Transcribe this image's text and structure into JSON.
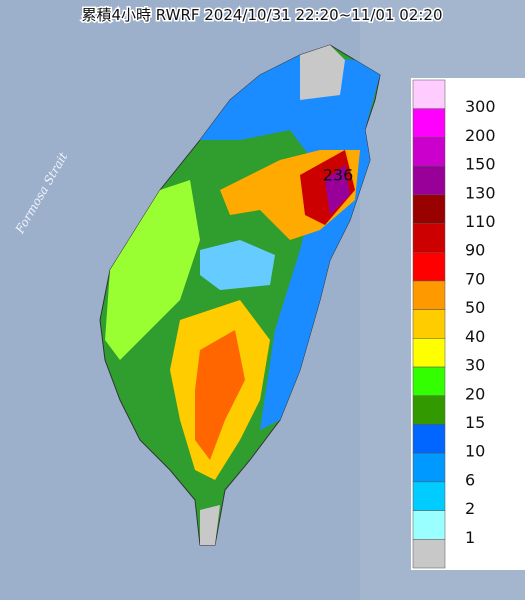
{
  "map": {
    "title": "累積4小時 RWRF 2024/10/31 22:20~11/01 02:20",
    "sea_label": "Formosa Strait",
    "peak_label": "236",
    "legend": {
      "colors": [
        "#ffccff",
        "#ff00ff",
        "#cc00cc",
        "#990099",
        "#990000",
        "#cc0000",
        "#ff0000",
        "#ff9900",
        "#ffcc00",
        "#ffff00",
        "#33ff00",
        "#339900",
        "#0066ff",
        "#0099ff",
        "#00ccff",
        "#99ffff",
        "#c8c8c8"
      ],
      "labels": [
        300,
        200,
        150,
        130,
        110,
        90,
        70,
        50,
        40,
        30,
        20,
        15,
        10,
        6,
        2,
        1
      ]
    }
  }
}
